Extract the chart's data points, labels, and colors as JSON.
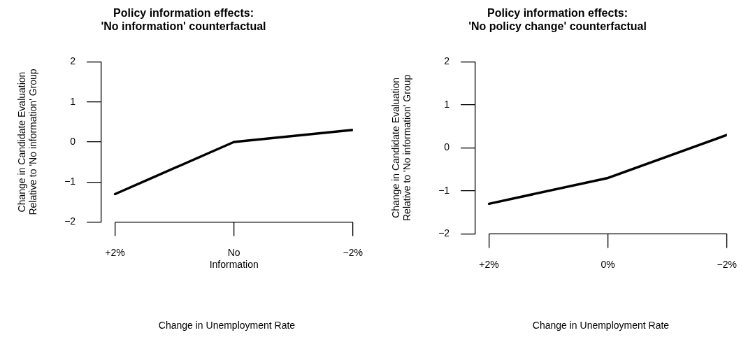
{
  "chart_data": [
    {
      "type": "line",
      "title": "Policy information effects:\n'No information' counterfactual",
      "xlabel": "Change in Unemployment Rate",
      "ylabel": "Change in Candidate Evaluation\nRelative to 'No information' Group",
      "categories": [
        "+2%",
        "No\nInformation",
        "−2%"
      ],
      "values": [
        -1.3,
        0,
        0.3
      ],
      "color": "#000000",
      "ylim": [
        -2,
        2
      ],
      "yticks": [
        -2,
        -1,
        0,
        1,
        2
      ]
    },
    {
      "type": "line",
      "title": "Policy information effects:\n'No policy change' counterfactual",
      "xlabel": "Change in Unemployment Rate",
      "ylabel": "Change in Candidate Evaluation\nRelative to 'No information' Group",
      "categories": [
        "+2%",
        "0%",
        "−2%"
      ],
      "values": [
        -1.3,
        -0.7,
        0.3
      ],
      "color": "#000000",
      "ylim": [
        -2,
        2
      ],
      "yticks": [
        -2,
        -1,
        0,
        1,
        2
      ]
    }
  ]
}
